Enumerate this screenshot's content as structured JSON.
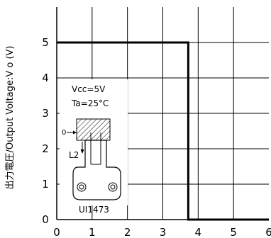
{
  "chart_data": {
    "type": "line",
    "title": "",
    "xlabel": "",
    "ylabel": "出力電圧/Output Voltage:V o (V)",
    "xlim": [
      0,
      6
    ],
    "ylim": [
      0,
      6
    ],
    "x_ticks": [
      "0",
      "1",
      "2",
      "3",
      "4",
      "5",
      "6"
    ],
    "y_ticks": [
      "0",
      "1",
      "2",
      "3",
      "4",
      "5"
    ],
    "grid": true,
    "series": [
      {
        "x": [
          0,
          3.72,
          3.72,
          6
        ],
        "y": [
          5,
          5,
          0,
          0
        ],
        "color": "#000000"
      }
    ],
    "annotations": {
      "vcc_label": "Vcc=5V",
      "ta_label": "Ta=25°C",
      "origin_mark": "0",
      "distance_label": "L2",
      "part_label": "UI1473"
    }
  }
}
